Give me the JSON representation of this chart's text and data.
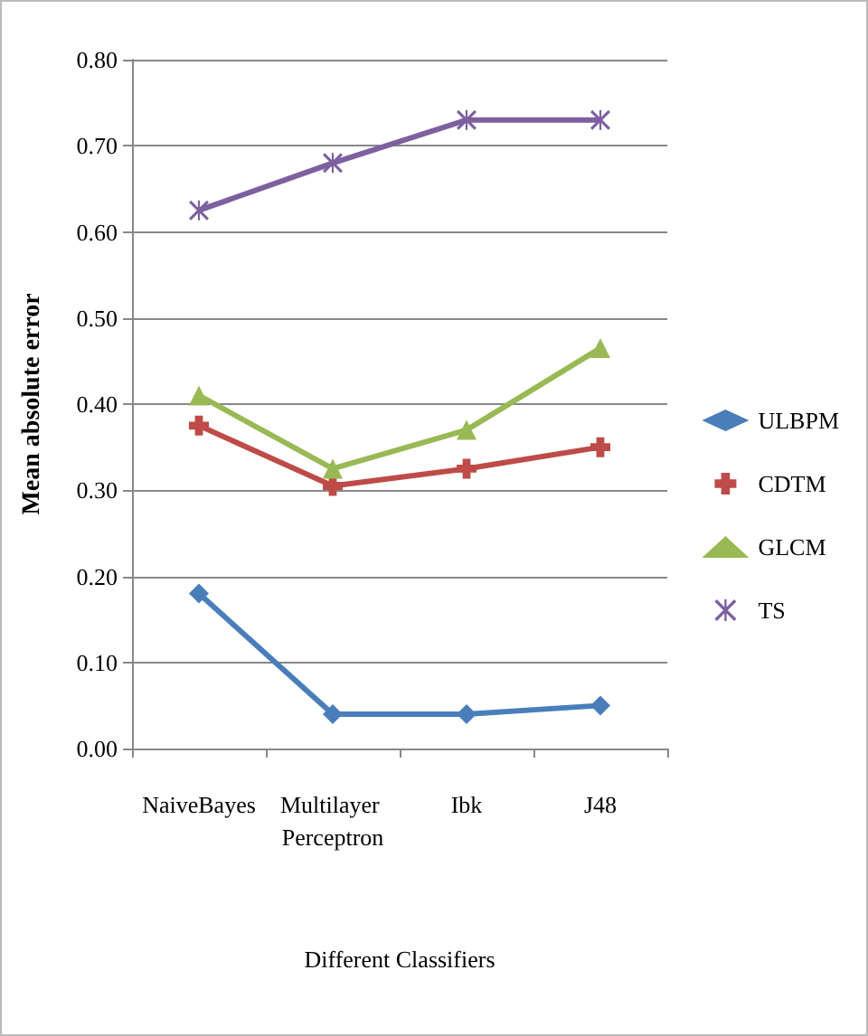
{
  "chart_data": {
    "type": "line",
    "xlabel": "Different Classifiers",
    "ylabel": "Mean absolute error",
    "categories": [
      "NaiveBayes",
      "Multilayer Perceptron",
      "Ibk",
      "J48"
    ],
    "series": [
      {
        "name": "ULBPM",
        "color": "#4a7ebb",
        "marker": "diamond",
        "values": [
          0.18,
          0.04,
          0.04,
          0.05
        ]
      },
      {
        "name": "CDTM",
        "color": "#be4b48",
        "marker": "cross",
        "values": [
          0.375,
          0.305,
          0.325,
          0.35
        ]
      },
      {
        "name": "GLCM",
        "color": "#98b954",
        "marker": "triangle",
        "values": [
          0.41,
          0.325,
          0.37,
          0.465
        ]
      },
      {
        "name": "TS",
        "color": "#7d60a0",
        "marker": "star",
        "values": [
          0.625,
          0.68,
          0.73,
          0.73
        ]
      }
    ],
    "ylim": [
      0,
      0.8
    ],
    "yticks": [
      {
        "value": 0,
        "label": "0.00"
      },
      {
        "value": 0.1,
        "label": "0.10"
      },
      {
        "value": 0.2,
        "label": "0.20"
      },
      {
        "value": 0.3,
        "label": "0.30"
      },
      {
        "value": 0.4,
        "label": "0.40"
      },
      {
        "value": 0.5,
        "label": "0.50"
      },
      {
        "value": 0.6,
        "label": "0.60"
      },
      {
        "value": 0.7,
        "label": "0.70"
      },
      {
        "value": 0.8,
        "label": "0.80"
      }
    ],
    "grid": "y",
    "legend": "right"
  }
}
